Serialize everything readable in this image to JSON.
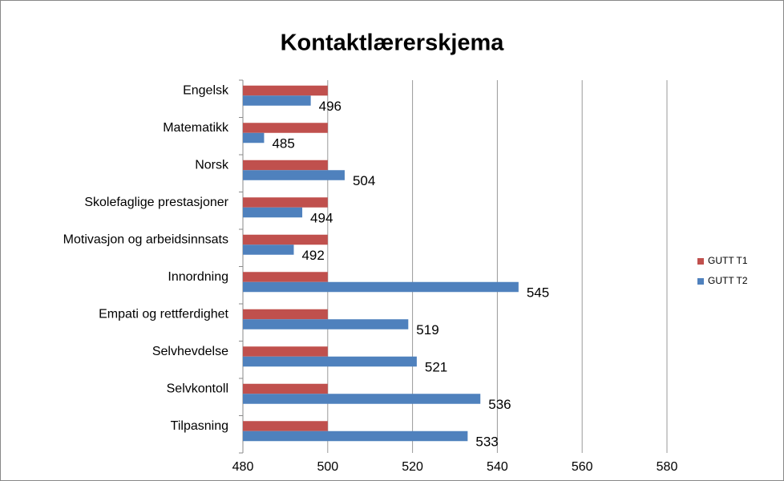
{
  "chart_data": {
    "type": "hbar",
    "title": "Kontaktlærerskjema",
    "categories": [
      "Engelsk",
      "Matematikk",
      "Norsk",
      "Skolefaglige prestasjoner",
      "Motivasjon og arbeidsinnsats",
      "Innordning",
      "Empati og rettferdighet",
      "Selvhevdelse",
      "Selvkontoll",
      "Tilpasning"
    ],
    "series": [
      {
        "name": "GUTT T1",
        "color": "#c0504d",
        "values": [
          500,
          500,
          500,
          500,
          500,
          500,
          500,
          500,
          500,
          500
        ]
      },
      {
        "name": "GUTT T2",
        "color": "#4f81bd",
        "values": [
          496,
          485,
          504,
          494,
          492,
          545,
          519,
          521,
          536,
          533
        ],
        "data_labels": true
      }
    ],
    "xlim": [
      480,
      580
    ],
    "xticks": [
      480,
      500,
      520,
      540,
      560,
      580
    ],
    "grid": true,
    "legend": "right"
  }
}
